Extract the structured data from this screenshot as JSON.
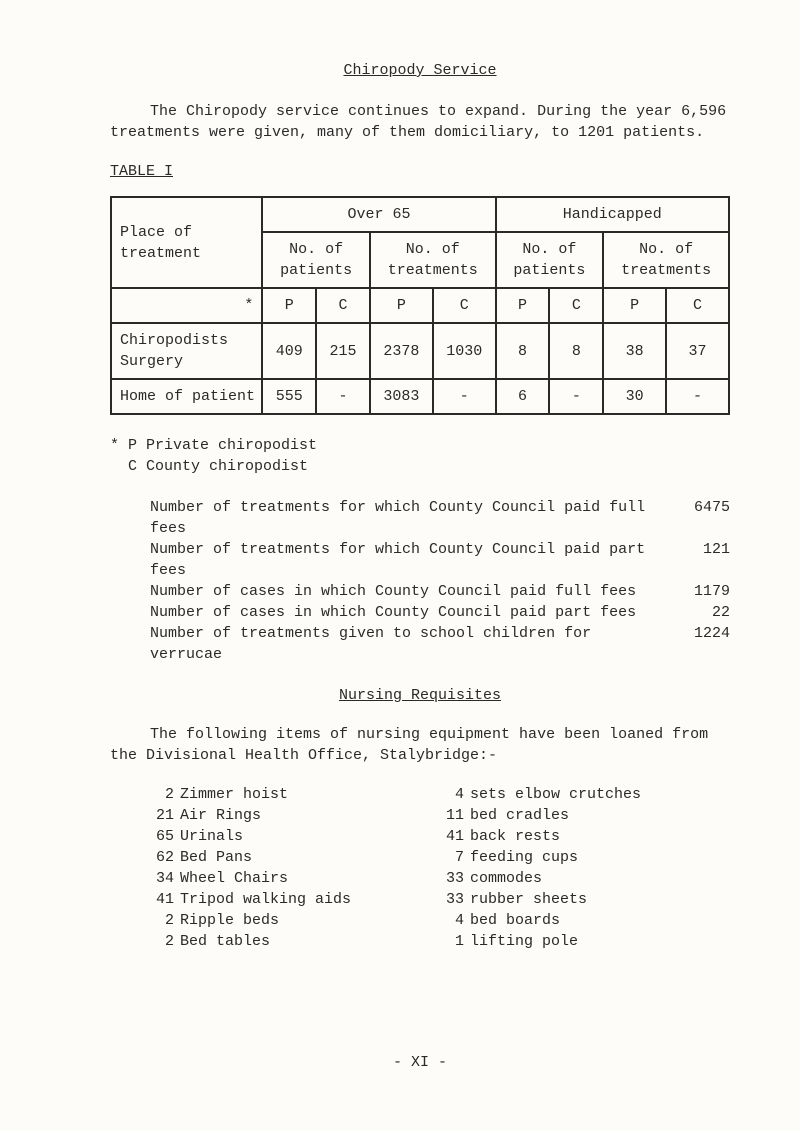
{
  "title": "Chiropody Service",
  "intro": "The Chiropody service continues to expand.  During the year 6,596 treatments were given, many of them domiciliary, to 1201 patients.",
  "table_label": "TABLE I",
  "table": {
    "h_place": "Place of treatment",
    "h_over65": "Over 65",
    "h_handicapped": "Handicapped",
    "h_no_patients": "No. of patients",
    "h_no_treatments": "No. of treatments",
    "h_star": "*",
    "h_p": "P",
    "h_c": "C",
    "rows": [
      {
        "place": "Chiropodists Surgery",
        "o65_pp": "409",
        "o65_pc": "215",
        "o65_tp": "2378",
        "o65_tc": "1030",
        "h_pp": "8",
        "h_pc": "8",
        "h_tp": "38",
        "h_tc": "37"
      },
      {
        "place": "Home of patient",
        "o65_pp": "555",
        "o65_pc": "-",
        "o65_tp": "3083",
        "o65_tc": "-",
        "h_pp": "6",
        "h_pc": "-",
        "h_tp": "30",
        "h_tc": "-"
      }
    ]
  },
  "footnote_p": "* P Private chiropodist",
  "footnote_c": "  C County chiropodist",
  "stats": [
    {
      "label": "Number of treatments for which County Council paid full fees",
      "val": "6475"
    },
    {
      "label": "Number of treatments for which County Council paid part fees",
      "val": "121"
    },
    {
      "label": "Number of cases in which County Council paid full fees",
      "val": "1179"
    },
    {
      "label": "Number of cases in which County Council paid part fees",
      "val": "22"
    },
    {
      "label": "Number of treatments given to school children for verrucae",
      "val": "1224"
    }
  ],
  "nursing_title": "Nursing Requisites",
  "nursing_intro": "The following items of nursing equipment have been loaned from the Divisional Health Office, Stalybridge:-",
  "equip_left": [
    {
      "qty": "2",
      "name": "Zimmer hoist"
    },
    {
      "qty": "21",
      "name": "Air Rings"
    },
    {
      "qty": "65",
      "name": "Urinals"
    },
    {
      "qty": "62",
      "name": "Bed Pans"
    },
    {
      "qty": "34",
      "name": "Wheel Chairs"
    },
    {
      "qty": "41",
      "name": "Tripod walking aids"
    },
    {
      "qty": "2",
      "name": "Ripple beds"
    },
    {
      "qty": "2",
      "name": "Bed tables"
    }
  ],
  "equip_right": [
    {
      "qty": "4",
      "name": "sets elbow crutches"
    },
    {
      "qty": "11",
      "name": "bed cradles"
    },
    {
      "qty": "41",
      "name": "back rests"
    },
    {
      "qty": "7",
      "name": "feeding cups"
    },
    {
      "qty": "33",
      "name": "commodes"
    },
    {
      "qty": "33",
      "name": "rubber sheets"
    },
    {
      "qty": "4",
      "name": "bed boards"
    },
    {
      "qty": "1",
      "name": "lifting pole"
    }
  ],
  "pagenum": "- XI -"
}
